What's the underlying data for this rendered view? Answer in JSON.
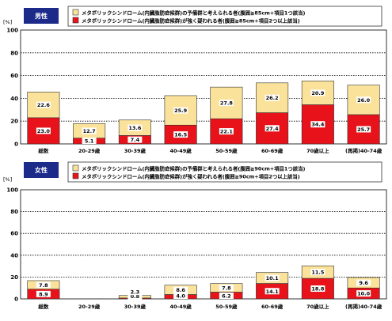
{
  "chart_data": [
    {
      "type": "bar",
      "stacked": true,
      "title": "男性",
      "unit": "[%]",
      "ylim": [
        0,
        100
      ],
      "yticks": [
        "0",
        "20",
        "40",
        "60",
        "80",
        "100"
      ],
      "grid": true,
      "legend_position": "top",
      "categories": [
        "総数",
        "20-29歳",
        "30-39歳",
        "40-49歳",
        "50-59歳",
        "60-69歳",
        "70歳以上",
        "(再掲)40-74歳"
      ],
      "series": [
        {
          "name": "メタボリックシンドローム(内臓脂肪症候群)が強く疑われる者(腹囲≧85cm+項目2つ以上該当)",
          "color": "#e8121b",
          "values": [
            23.0,
            5.1,
            7.4,
            16.5,
            22.1,
            27.4,
            34.4,
            25.7
          ]
        },
        {
          "name": "メタボリックシンドローム(内臓脂肪症候群)の予備群と考えられる者(腹囲≧85cm+項目1つ該当)",
          "color": "#fbe29a",
          "values": [
            22.6,
            12.7,
            13.6,
            25.9,
            27.8,
            26.2,
            20.9,
            26.0
          ]
        }
      ],
      "labels_bottom": [
        "23.0",
        "5.1",
        "7.4",
        "16.5",
        "22.1",
        "27.4",
        "34.4",
        "25.7"
      ],
      "labels_top": [
        "22.6",
        "12.7",
        "13.6",
        "25.9",
        "27.8",
        "26.2",
        "20.9",
        "26.0"
      ]
    },
    {
      "type": "bar",
      "stacked": true,
      "title": "女性",
      "unit": "[%]",
      "ylim": [
        0,
        100
      ],
      "yticks": [
        "0",
        "20",
        "40",
        "60",
        "80",
        "100"
      ],
      "grid": true,
      "legend_position": "top",
      "categories": [
        "総数",
        "20-29歳",
        "30-39歳",
        "40-49歳",
        "50-59歳",
        "60-69歳",
        "70歳以上",
        "(再掲)40-74歳"
      ],
      "series": [
        {
          "name": "メタボリックシンドローム(内臓脂肪症候群)が強く疑われる者(腹囲≧90cm+項目2つ以上該当)",
          "color": "#e8121b",
          "values": [
            8.9,
            0,
            0.8,
            4.0,
            6.2,
            14.1,
            18.8,
            10.0
          ]
        },
        {
          "name": "メタボリックシンドローム(内臓脂肪症候群)の予備群と考えられる者(腹囲≧90cm+項目1つ該当)",
          "color": "#fbe29a",
          "values": [
            7.8,
            0,
            2.3,
            8.6,
            7.8,
            10.1,
            11.5,
            9.6
          ]
        }
      ],
      "labels_bottom": [
        "8.9",
        "",
        "0.8",
        "4.0",
        "6.2",
        "14.1",
        "18.8",
        "10.0"
      ],
      "labels_top": [
        "7.8",
        "",
        "2.3",
        "8.6",
        "7.8",
        "10.1",
        "11.5",
        "9.6"
      ]
    }
  ]
}
